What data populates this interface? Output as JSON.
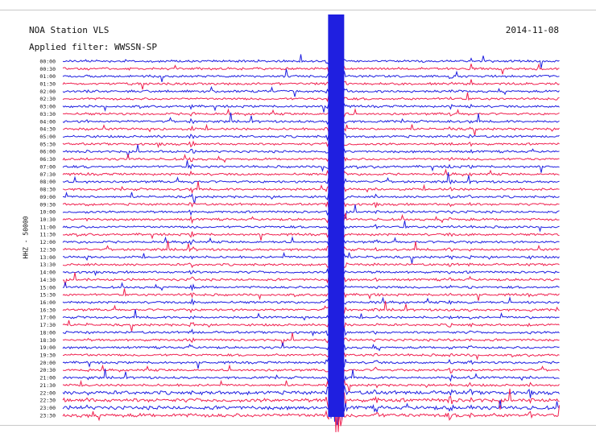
{
  "header": {
    "station": "NOA Station VLS",
    "filter": "Applied filter: WWSSN-SP",
    "date": "2014-11-08"
  },
  "colors": {
    "trace_a": "#1f1fe0",
    "trace_b": "#f0204f",
    "background": "#ffffff"
  },
  "chart_data": {
    "type": "line",
    "title": "NOA Station VLS",
    "subtitle": "Applied filter: WWSSN-SP",
    "date": "2014-11-08",
    "ylabel": "HHZ - 50000",
    "xlabel": "",
    "grid": false,
    "row_labels": [
      "00:00",
      "00:30",
      "01:00",
      "01:30",
      "02:00",
      "02:30",
      "03:00",
      "03:30",
      "04:00",
      "04:30",
      "05:00",
      "05:30",
      "06:00",
      "06:30",
      "07:00",
      "07:30",
      "08:00",
      "08:30",
      "09:00",
      "09:30",
      "10:00",
      "10:30",
      "11:00",
      "11:30",
      "12:00",
      "12:30",
      "13:00",
      "13:30",
      "14:00",
      "14:30",
      "15:00",
      "15:30",
      "16:00",
      "16:30",
      "17:00",
      "17:30",
      "18:00",
      "18:30",
      "19:00",
      "19:30",
      "20:00",
      "20:30",
      "21:00",
      "21:30",
      "22:00",
      "22:30",
      "23:00",
      "23:30"
    ],
    "series": [
      {
        "color": "#1f1fe0",
        "rows": "even"
      },
      {
        "color": "#f0204f",
        "rows": "odd"
      }
    ],
    "events": [
      {
        "x": 0.05,
        "rows": [
          0,
          47
        ],
        "amp": 0.9
      },
      {
        "x": 0.2,
        "rows": [
          8,
          14
        ],
        "amp": 1.0
      },
      {
        "x": 0.26,
        "rows": [
          6,
          38
        ],
        "amp": 3.5
      },
      {
        "x": 0.55,
        "rows": [
          0,
          47
        ],
        "amp": 12
      },
      {
        "x": 0.63,
        "rows": [
          14,
          47
        ],
        "amp": 1.6
      },
      {
        "x": 0.78,
        "rows": [
          2,
          47
        ],
        "amp": 2.0
      },
      {
        "x": 0.82,
        "rows": [
          6,
          47
        ],
        "amp": 1.4
      },
      {
        "x": 0.94,
        "rows": [
          26,
          47
        ],
        "amp": 1.2
      }
    ]
  }
}
